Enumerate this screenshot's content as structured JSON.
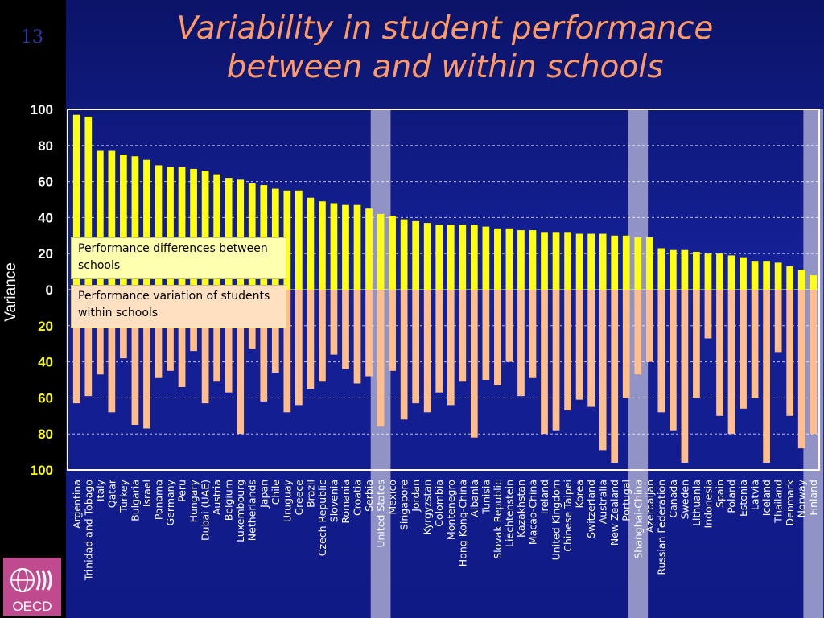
{
  "slide": {
    "number": "13",
    "title_line1": "Variability in student performance",
    "title_line2": "between and within schools",
    "logo_text": "OECD"
  },
  "colors": {
    "background": "#101a7e",
    "between_bar": "#ffff14",
    "within_bar": "#ffbe8c",
    "title": "#ff9a66",
    "highlight_band": "#a8a8d0",
    "tick_positive": "#ffffff",
    "tick_negative": "#ffff00"
  },
  "notes": {
    "between": "Performance differences between schools",
    "within": "Performance variation of students within schools"
  },
  "chart_data": {
    "type": "bar",
    "ylabel": "Variance",
    "ylim": [
      -100,
      100
    ],
    "y_ticks": [
      {
        "value": 100,
        "label": "100"
      },
      {
        "value": 80,
        "label": "80"
      },
      {
        "value": 60,
        "label": "60"
      },
      {
        "value": 40,
        "label": "40"
      },
      {
        "value": 20,
        "label": "20"
      },
      {
        "value": 0,
        "label": "0"
      },
      {
        "value": -20,
        "label": "20"
      },
      {
        "value": -40,
        "label": "40"
      },
      {
        "value": -60,
        "label": "60"
      },
      {
        "value": -80,
        "label": "80"
      },
      {
        "value": -100,
        "label": "100"
      }
    ],
    "grid": true,
    "highlighted": [
      "United States",
      "Shanghai-China",
      "Finland"
    ],
    "categories": [
      "Argentina",
      "Trinidad and Tobago",
      "Italy",
      "Qatar",
      "Turkey",
      "Bulgaria",
      "Israel",
      "Panama",
      "Germany",
      "Peru",
      "Hungary",
      "Dubai (UAE)",
      "Austria",
      "Belgium",
      "Luxembourg",
      "Netherlands",
      "Japan",
      "Chile",
      "Uruguay",
      "Greece",
      "Brazil",
      "Czech Republic",
      "Slovenia",
      "Romania",
      "Croatia",
      "Serbia",
      "United States",
      "Mexico",
      "Singapore",
      "Jordan",
      "Kyrgyzstan",
      "Colombia",
      "Montenegro",
      "Hong Kong-China",
      "Albania",
      "Tunisia",
      "Slovak Republic",
      "Liechtenstein",
      "Kazakhstan",
      "Macao-China",
      "Ireland",
      "United Kingdom",
      "Chinese Taipei",
      "Korea",
      "Switzerland",
      "Australia",
      "New Zealand",
      "Portugal",
      "Shanghai-China",
      "Azerbaijan",
      "Russian Federation",
      "Canada",
      "Sweden",
      "Lithuania",
      "Indonesia",
      "Spain",
      "Poland",
      "Estonia",
      "Latvia",
      "Iceland",
      "Thailand",
      "Denmark",
      "Norway",
      "Finland"
    ],
    "series": [
      {
        "name": "Performance differences between schools",
        "values": [
          97,
          96,
          77,
          77,
          75,
          74,
          72,
          69,
          68,
          68,
          67,
          66,
          64,
          62,
          61,
          59,
          58,
          56,
          55,
          55,
          51,
          49,
          48,
          47,
          47,
          45,
          42,
          41,
          39,
          38,
          37,
          36,
          36,
          36,
          36,
          35,
          34,
          34,
          33,
          33,
          32,
          32,
          32,
          31,
          31,
          31,
          30,
          30,
          29,
          29,
          23,
          22,
          22,
          21,
          20,
          20,
          19,
          18,
          16,
          16,
          15,
          13,
          11,
          8
        ]
      },
      {
        "name": "Performance variation of students within schools",
        "values": [
          63,
          59,
          47,
          68,
          38,
          75,
          77,
          49,
          45,
          54,
          34,
          63,
          51,
          57,
          80,
          33,
          62,
          46,
          68,
          64,
          55,
          51,
          36,
          44,
          52,
          48,
          76,
          45,
          72,
          63,
          68,
          57,
          64,
          51,
          82,
          50,
          53,
          40,
          59,
          49,
          80,
          78,
          67,
          61,
          65,
          89,
          96,
          60,
          47,
          40,
          68,
          78,
          96,
          60,
          27,
          70,
          80,
          66,
          60,
          96,
          35,
          70,
          88,
          80
        ]
      }
    ]
  }
}
